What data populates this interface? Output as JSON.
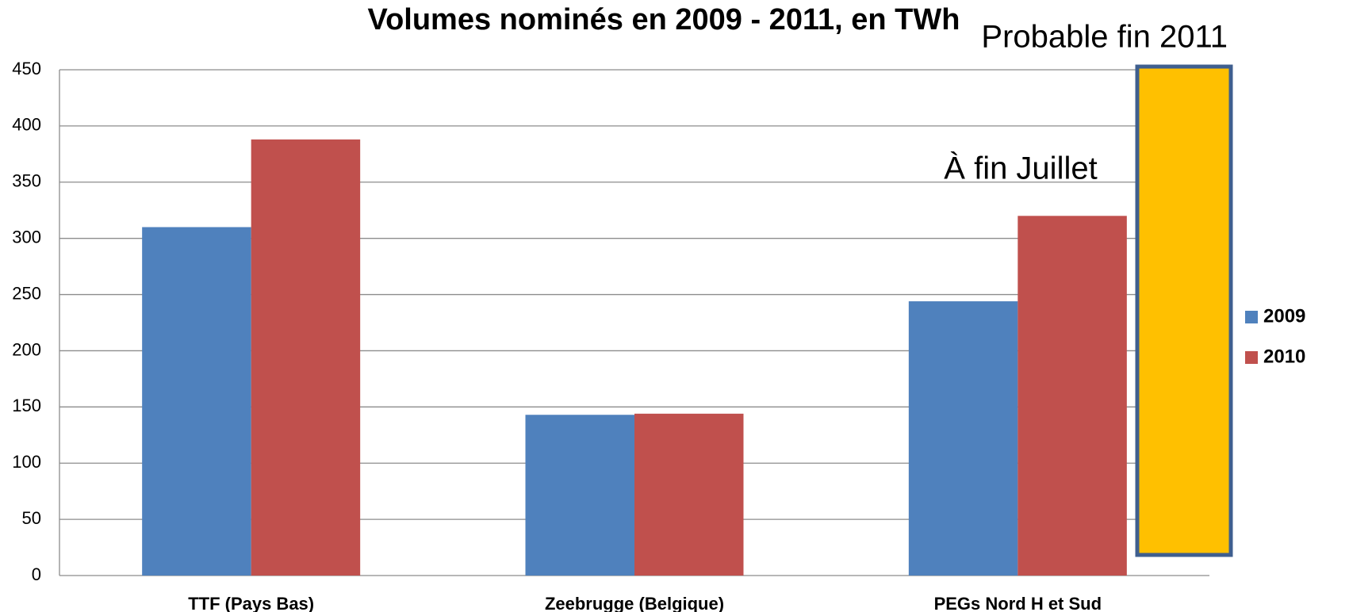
{
  "chart_data": {
    "type": "bar",
    "title": "Volumes nominés en 2009 - 2011, en TWh",
    "categories": [
      "TTF (Pays Bas)",
      "Zeebrugge (Belgique)",
      "PEGs Nord H et Sud"
    ],
    "series": [
      {
        "name": "2009",
        "color": "#4f81bd",
        "values": [
          310,
          143,
          244
        ]
      },
      {
        "name": "2010",
        "color": "#c0504d",
        "values": [
          388,
          144,
          320
        ]
      }
    ],
    "ylim": [
      0,
      450
    ],
    "yticks": [
      0,
      50,
      100,
      150,
      200,
      250,
      300,
      350,
      400,
      450
    ],
    "grid": true,
    "legend": "right",
    "annotations": [
      "Probable fin 2011",
      "À fin Juillet"
    ]
  }
}
